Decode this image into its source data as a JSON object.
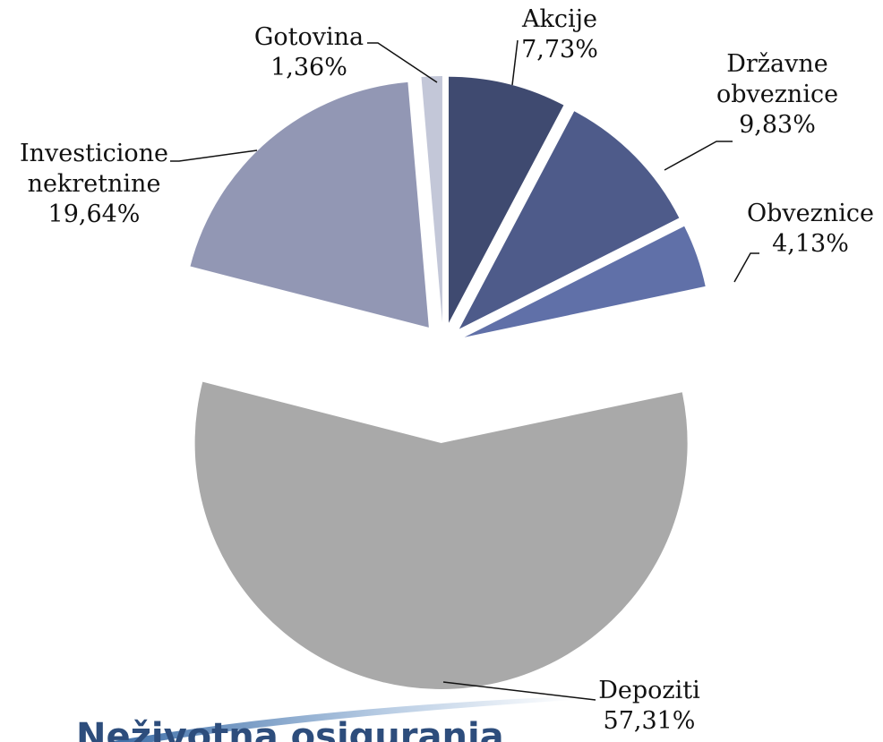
{
  "chart_data": {
    "type": "pie",
    "title": "Neživotna osiguranja",
    "categories": [
      "Akcije",
      "Državne obveznice",
      "Obveznice",
      "Depoziti",
      "Investicione nekretnine",
      "Gotovina"
    ],
    "values": [
      7.73,
      9.83,
      4.13,
      57.31,
      19.64,
      1.36
    ],
    "value_labels": [
      "7,73%",
      "9,83%",
      "4,13%",
      "57,31%",
      "19,64%",
      "1,36%"
    ],
    "colors": [
      "#3f4a70",
      "#4e5b8a",
      "#6070a8",
      "#a9a9a9",
      "#9297b4",
      "#c3c7d8"
    ]
  }
}
